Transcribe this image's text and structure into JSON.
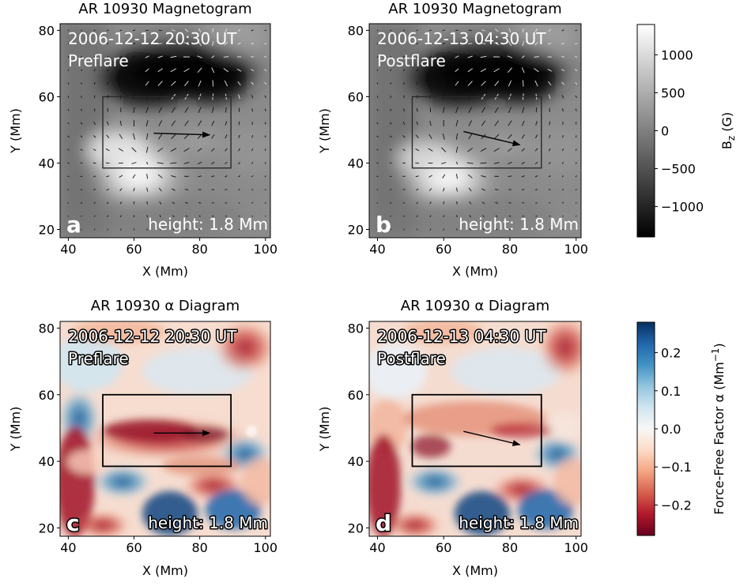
{
  "chart_data": [
    {
      "type": "heatmap",
      "panel_letter": "a",
      "title": "AR 10930  Magnetogram",
      "timestamp": "2006-12-12 20:30 UT",
      "phase": "Preflare",
      "height_label": "height: 1.8 Mm",
      "xlabel": "X (Mm)",
      "ylabel": "Y (Mm)",
      "xlim": [
        37.5,
        101.5
      ],
      "ylim": [
        17.5,
        82
      ],
      "xticks": [
        "40",
        "60",
        "80",
        "100"
      ],
      "yticks": [
        "20",
        "40",
        "60",
        "80"
      ],
      "box": {
        "x": [
          50.5,
          89.5
        ],
        "y": [
          38.5,
          60
        ]
      },
      "arrow": {
        "from": [
          66,
          49
        ],
        "to": [
          83,
          48.5
        ]
      },
      "quantity": "Bz",
      "vector_overlay": true
    },
    {
      "type": "heatmap",
      "panel_letter": "b",
      "title": "AR 10930  Magnetogram",
      "timestamp": "2006-12-13 04:30 UT",
      "phase": "Postflare",
      "height_label": "height: 1.8 Mm",
      "xlabel": "X (Mm)",
      "ylabel": "Y (Mm)",
      "xlim": [
        37.5,
        101.5
      ],
      "ylim": [
        17.5,
        82
      ],
      "xticks": [
        "40",
        "60",
        "80",
        "100"
      ],
      "yticks": [
        "20",
        "40",
        "60",
        "80"
      ],
      "box": {
        "x": [
          50.5,
          89.5
        ],
        "y": [
          38.5,
          60
        ]
      },
      "arrow": {
        "from": [
          66,
          49.5
        ],
        "to": [
          83,
          45.5
        ]
      },
      "quantity": "Bz",
      "vector_overlay": true
    },
    {
      "type": "heatmap",
      "panel_letter": "c",
      "title": "AR 10930  α Diagram",
      "timestamp": "2006-12-12 20:30 UT",
      "phase": "Preflare",
      "height_label": "height: 1.8 Mm",
      "xlabel": "X (Mm)",
      "ylabel": "Y (Mm)",
      "xlim": [
        37.5,
        101.5
      ],
      "ylim": [
        17.5,
        82
      ],
      "xticks": [
        "40",
        "60",
        "80",
        "100"
      ],
      "yticks": [
        "20",
        "40",
        "60",
        "80"
      ],
      "box": {
        "x": [
          50.5,
          89.5
        ],
        "y": [
          38.5,
          60
        ]
      },
      "arrow": {
        "from": [
          66,
          48.5
        ],
        "to": [
          83,
          48.5
        ]
      },
      "quantity": "alpha"
    },
    {
      "type": "heatmap",
      "panel_letter": "d",
      "title": "AR 10930  α Diagram",
      "timestamp": "2006-12-13 04:30 UT",
      "phase": "Postflare",
      "height_label": "height: 1.8 Mm",
      "xlabel": "X (Mm)",
      "ylabel": "Y (Mm)",
      "xlim": [
        37.5,
        101.5
      ],
      "ylim": [
        17.5,
        82
      ],
      "xticks": [
        "40",
        "60",
        "80",
        "100"
      ],
      "yticks": [
        "20",
        "40",
        "60",
        "80"
      ],
      "box": {
        "x": [
          50.5,
          89.5
        ],
        "y": [
          38.5,
          60
        ]
      },
      "arrow": {
        "from": [
          66,
          49
        ],
        "to": [
          83,
          45
        ]
      },
      "quantity": "alpha"
    }
  ],
  "colorbars": [
    {
      "name": "bz",
      "label": "B_z (G)",
      "label_main": "B",
      "label_sub": "z",
      "label_unit": " (G)",
      "range": [
        -1400,
        1400
      ],
      "ticks": [
        1000,
        500,
        0,
        -500,
        -1000
      ],
      "tick_labels": [
        "1000",
        "500",
        "0",
        "−500",
        "−1000"
      ],
      "colormap": "gray",
      "colors": [
        "#000000",
        "#ffffff"
      ]
    },
    {
      "name": "alpha",
      "label": "Force-Free Factor α (Mm⁻¹)",
      "label_main": "Force-Free Factor α (Mm",
      "label_sup": "−1",
      "label_end": ")",
      "range": [
        -0.28,
        0.28
      ],
      "ticks": [
        0.2,
        0.1,
        0.0,
        -0.1,
        -0.2
      ],
      "tick_labels": [
        "0.2",
        "0.1",
        "0.0",
        "−0.1",
        "−0.2"
      ],
      "colormap": "RdBu",
      "colors": [
        "#67001f",
        "#b2182b",
        "#d6604d",
        "#f4a582",
        "#fddbc7",
        "#f7f7f7",
        "#d1e5f0",
        "#92c5de",
        "#4393c3",
        "#2166ac",
        "#053061"
      ]
    }
  ]
}
